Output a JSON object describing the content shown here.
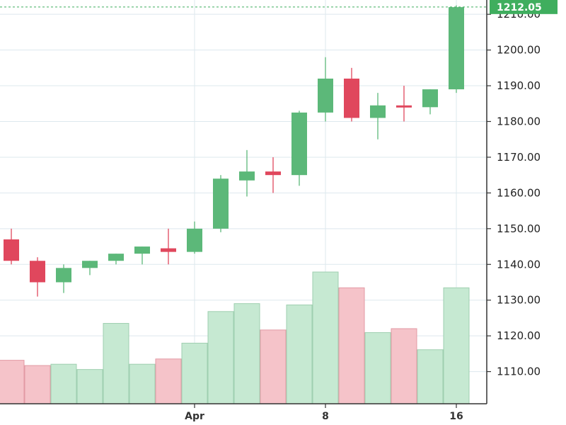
{
  "chart_data": {
    "type": "candlestick",
    "title": "",
    "xlabel": "",
    "ylabel": "",
    "ylim": [
      1101,
      1214
    ],
    "y_ticks": [
      1110,
      1120,
      1130,
      1140,
      1150,
      1160,
      1170,
      1180,
      1190,
      1200,
      1210
    ],
    "y_tick_labels": [
      "1110.00",
      "1120.00",
      "1130.00",
      "1140.00",
      "1150.00",
      "1160.00",
      "1170.00",
      "1180.00",
      "1190.00",
      "1200.00",
      "1210.00"
    ],
    "x_ticks": [
      {
        "index": 7,
        "label": "Apr"
      },
      {
        "index": 12,
        "label": "8"
      },
      {
        "index": 17,
        "label": "16"
      }
    ],
    "last_price": 1212.05,
    "last_price_label": "1212.05",
    "grid": true,
    "colors": {
      "up": "#5cb879",
      "down": "#e0475d",
      "up_volume": "#c6e9d2",
      "down_volume": "#f5c3c9",
      "grid": "#dde8ee",
      "badge": "#3fae5e"
    },
    "candles": [
      {
        "open": 1147,
        "high": 1150,
        "low": 1140,
        "close": 1141,
        "volume": 0.33
      },
      {
        "open": 1141,
        "high": 1142,
        "low": 1131,
        "close": 1135,
        "volume": 0.29
      },
      {
        "open": 1135,
        "high": 1140,
        "low": 1132,
        "close": 1139,
        "volume": 0.3
      },
      {
        "open": 1139,
        "high": 1141,
        "low": 1137,
        "close": 1141,
        "volume": 0.26
      },
      {
        "open": 1141,
        "high": 1143,
        "low": 1140,
        "close": 1143,
        "volume": 0.61
      },
      {
        "open": 1143,
        "high": 1145,
        "low": 1140,
        "close": 1145,
        "volume": 0.3
      },
      {
        "open": 1144.5,
        "high": 1150,
        "low": 1140,
        "close": 1143.5,
        "volume": 0.34
      },
      {
        "open": 1143.5,
        "high": 1152,
        "low": 1143,
        "close": 1150,
        "volume": 0.46
      },
      {
        "open": 1150,
        "high": 1165,
        "low": 1149,
        "close": 1164,
        "volume": 0.7
      },
      {
        "open": 1163.5,
        "high": 1172,
        "low": 1159,
        "close": 1166,
        "volume": 0.76
      },
      {
        "open": 1166,
        "high": 1170,
        "low": 1160,
        "close": 1165,
        "volume": 0.56
      },
      {
        "open": 1165,
        "high": 1183,
        "low": 1162,
        "close": 1182.5,
        "volume": 0.75
      },
      {
        "open": 1182.5,
        "high": 1198,
        "low": 1180,
        "close": 1192,
        "volume": 1.0
      },
      {
        "open": 1192,
        "high": 1195,
        "low": 1180,
        "close": 1181,
        "volume": 0.88
      },
      {
        "open": 1181,
        "high": 1188,
        "low": 1175,
        "close": 1184.5,
        "volume": 0.54
      },
      {
        "open": 1184.5,
        "high": 1190,
        "low": 1180,
        "close": 1184,
        "volume": 0.57
      },
      {
        "open": 1184,
        "high": 1189,
        "low": 1182,
        "close": 1189,
        "volume": 0.41
      },
      {
        "open": 1189,
        "high": 1212.5,
        "low": 1188,
        "close": 1212,
        "volume": 0.88
      }
    ]
  }
}
